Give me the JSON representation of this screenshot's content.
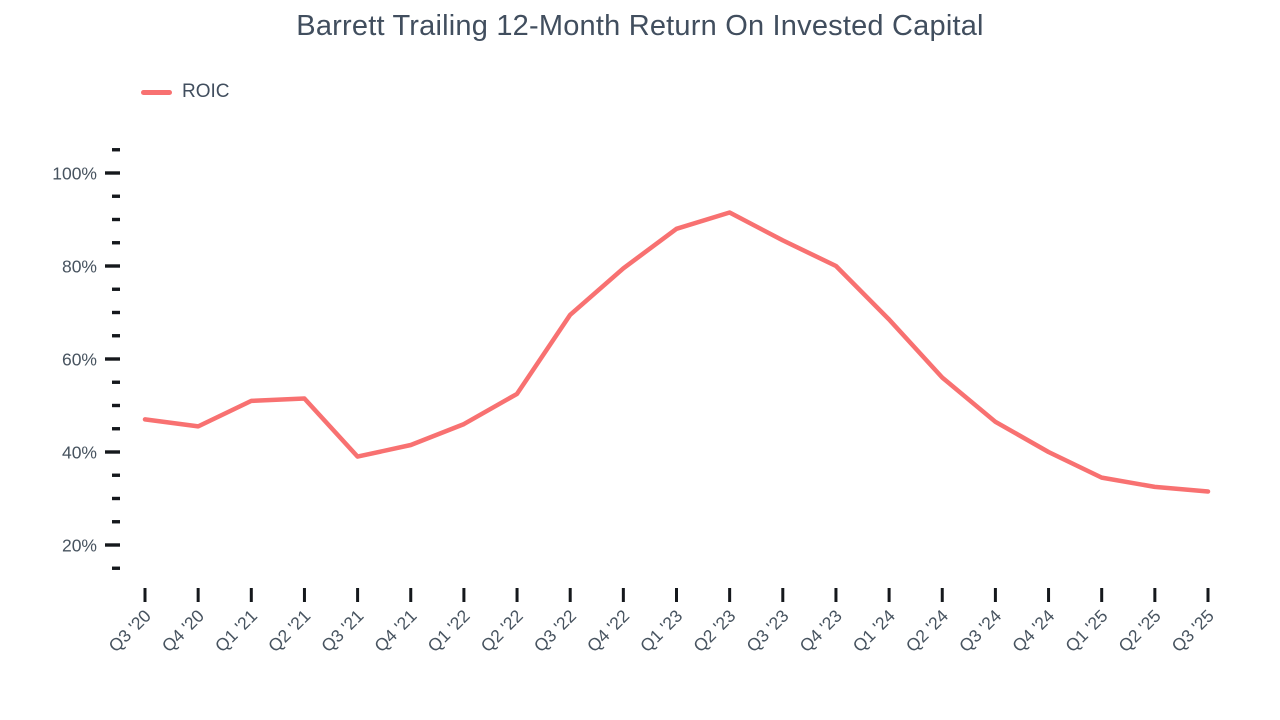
{
  "title": "Barrett Trailing 12-Month Return On Invested Capital",
  "legend": {
    "items": [
      {
        "label": "ROIC",
        "color": "#f87171"
      }
    ]
  },
  "chart_data": {
    "type": "line",
    "title": "Barrett Trailing 12-Month Return On Invested Capital",
    "categories": [
      "Q3 '20",
      "Q4 '20",
      "Q1 '21",
      "Q2 '21",
      "Q3 '21",
      "Q4 '21",
      "Q1 '22",
      "Q2 '22",
      "Q3 '22",
      "Q4 '22",
      "Q1 '23",
      "Q2 '23",
      "Q3 '23",
      "Q4 '23",
      "Q1 '24",
      "Q2 '24",
      "Q3 '24",
      "Q4 '24",
      "Q1 '25",
      "Q2 '25",
      "Q3 '25"
    ],
    "series": [
      {
        "name": "ROIC",
        "color": "#f87171",
        "values": [
          47,
          45.5,
          51,
          51.5,
          39,
          41.5,
          46,
          52.5,
          69.5,
          79.5,
          88,
          91.5,
          85.5,
          80,
          68.5,
          56,
          46.5,
          40,
          34.5,
          32.5,
          31.5
        ]
      }
    ],
    "xlabel": "",
    "ylabel": "",
    "y_axis": {
      "unit": "%",
      "major_ticks": [
        20,
        40,
        60,
        80,
        100
      ],
      "major_tick_labels": [
        "20%",
        "40%",
        "60%",
        "80%",
        "100%"
      ],
      "minor_tick_step": 5,
      "minor_tick_min": 15,
      "minor_tick_max": 105
    },
    "grid": false,
    "legend_position": "top-left"
  },
  "colors": {
    "series": "#f87171",
    "title_text": "#414e5e",
    "axis_label_text": "#47535f",
    "tick_mark": "#15181c",
    "background": "#ffffff"
  }
}
